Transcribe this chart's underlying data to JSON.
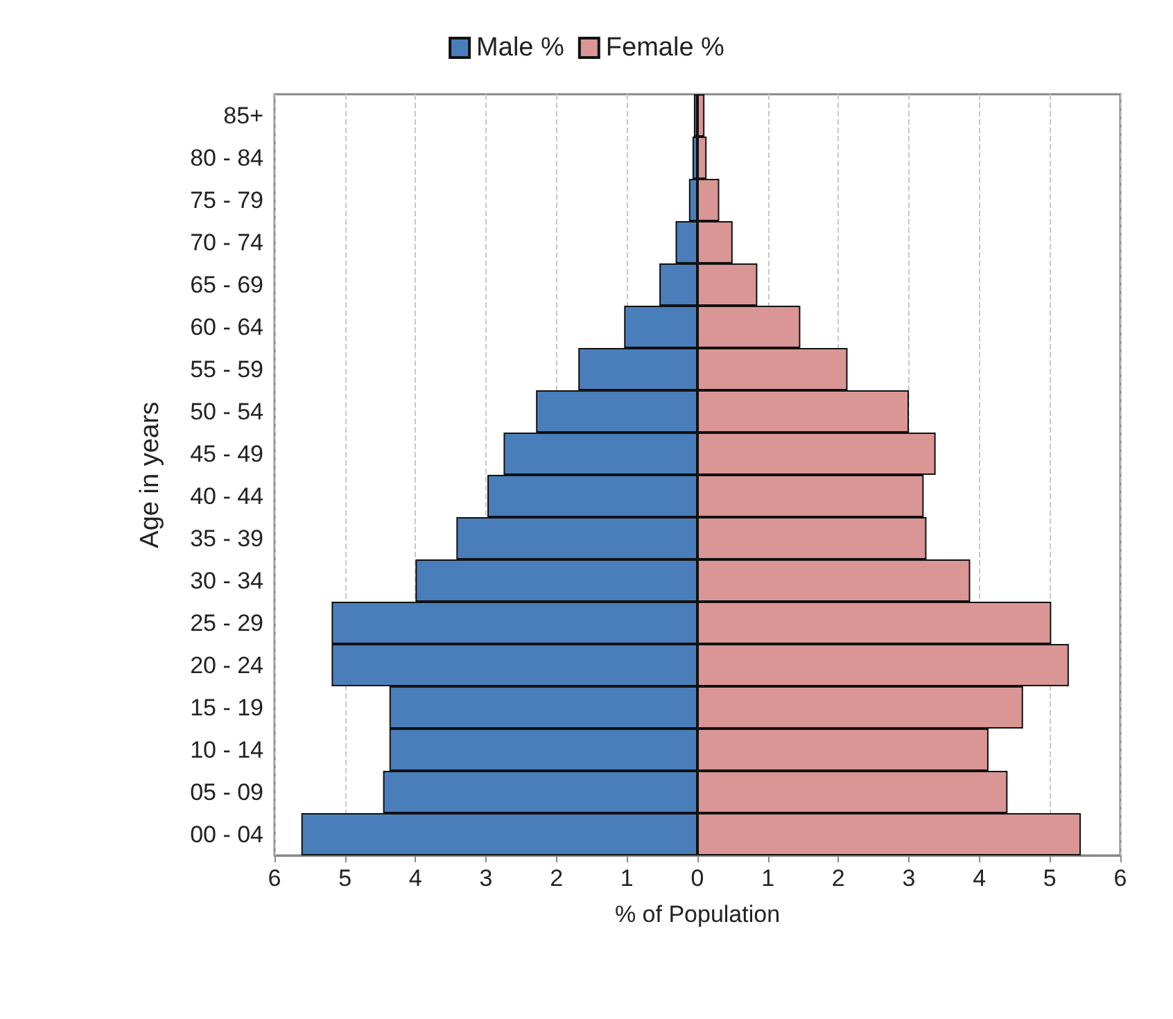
{
  "chart_data": {
    "type": "bar",
    "orientation": "horizontal",
    "xlabel": "% of Population",
    "ylabel": "Age in years",
    "categories": [
      "85+",
      "80 - 84",
      "75 - 79",
      "70 - 74",
      "65 - 69",
      "60 - 64",
      "55 - 59",
      "50 - 54",
      "45 - 49",
      "40 - 44",
      "35 - 39",
      "30 - 34",
      "25 - 29",
      "20 - 24",
      "15 - 19",
      "10 - 14",
      "05 - 09",
      "00 - 04"
    ],
    "series": [
      {
        "name": "Male %",
        "color": "#4a7ebb",
        "values": [
          -0.05,
          -0.07,
          -0.12,
          -0.31,
          -0.54,
          -1.04,
          -1.69,
          -2.29,
          -2.75,
          -2.98,
          -3.42,
          -4.0,
          -5.19,
          -5.19,
          -4.37,
          -4.37,
          -4.46,
          -5.62
        ]
      },
      {
        "name": "Female %",
        "color": "#d99694",
        "values": [
          0.1,
          0.13,
          0.31,
          0.5,
          0.85,
          1.46,
          2.13,
          3.0,
          3.38,
          3.21,
          3.25,
          3.87,
          5.02,
          5.27,
          4.62,
          4.13,
          4.4,
          5.44
        ]
      }
    ],
    "xlim": [
      -6,
      6
    ],
    "xticks": [
      {
        "value": -6,
        "label": "6"
      },
      {
        "value": -5,
        "label": "5"
      },
      {
        "value": -4,
        "label": "4"
      },
      {
        "value": -3,
        "label": "3"
      },
      {
        "value": -2,
        "label": "2"
      },
      {
        "value": -1,
        "label": "1"
      },
      0,
      1,
      2,
      3,
      4,
      5,
      6
    ],
    "grid": "x",
    "legend": "top",
    "stacked": true
  }
}
